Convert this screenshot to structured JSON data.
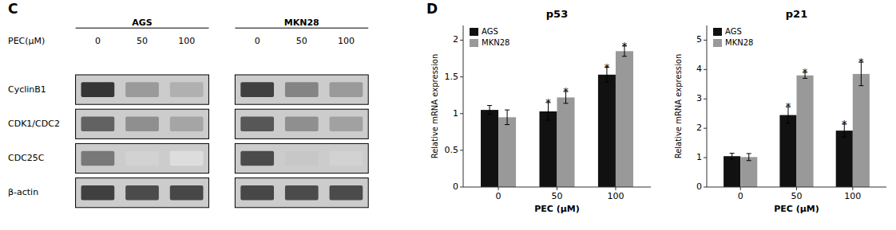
{
  "chart_data": [
    {
      "type": "blot",
      "annotations": [
        "C"
      ],
      "xlabel": "PEC(μM)",
      "categories": [
        "0",
        "50",
        "100"
      ],
      "rows": [
        "CyclinB1",
        "CDK1/CDC2",
        "CDC25C",
        "β-actin"
      ],
      "series": [
        {
          "name": "AGS",
          "values": [
            [
              0.9,
              0.45,
              0.35
            ],
            [
              0.7,
              0.5,
              0.4
            ],
            [
              0.6,
              0.2,
              0.15
            ],
            [
              0.85,
              0.8,
              0.82
            ]
          ]
        },
        {
          "name": "MKN28",
          "values": [
            [
              0.85,
              0.55,
              0.45
            ],
            [
              0.75,
              0.5,
              0.42
            ],
            [
              0.8,
              0.25,
              0.2
            ],
            [
              0.82,
              0.8,
              0.8
            ]
          ]
        }
      ]
    },
    {
      "type": "bar",
      "annotations": [
        "D"
      ],
      "title": "p53",
      "xlabel": "PEC (μM)",
      "ylabel": "Relative mRNA expression",
      "categories": [
        "0",
        "50",
        "100"
      ],
      "series": [
        {
          "name": "AGS",
          "color": "#111111",
          "values": [
            1.05,
            1.03,
            1.53
          ],
          "errors": [
            0.06,
            0.12,
            0.1
          ],
          "annotations": [
            null,
            "*",
            "*"
          ]
        },
        {
          "name": "MKN28",
          "color": "#999999",
          "values": [
            0.95,
            1.22,
            1.85
          ],
          "errors": [
            0.1,
            0.08,
            0.07
          ],
          "annotations": [
            null,
            "*",
            "*"
          ]
        }
      ],
      "ylim": [
        0,
        2.2
      ],
      "yticks": [
        0,
        0.5,
        1,
        1.5,
        2
      ],
      "grid": false,
      "legend": "upper left"
    },
    {
      "type": "bar",
      "title": "p21",
      "xlabel": "PEC (μM)",
      "ylabel": "Relative mRNA expression",
      "categories": [
        "0",
        "50",
        "100"
      ],
      "series": [
        {
          "name": "AGS",
          "color": "#111111",
          "values": [
            1.05,
            2.45,
            1.92
          ],
          "errors": [
            0.1,
            0.28,
            0.22
          ],
          "annotations": [
            null,
            "*",
            "*"
          ]
        },
        {
          "name": "MKN28",
          "color": "#999999",
          "values": [
            1.02,
            3.8,
            3.85
          ],
          "errors": [
            0.12,
            0.1,
            0.4
          ],
          "annotations": [
            null,
            "*",
            "*"
          ]
        }
      ],
      "ylim": [
        0,
        5.5
      ],
      "yticks": [
        0,
        1,
        2,
        3,
        4,
        5
      ],
      "grid": false,
      "legend": "upper left"
    }
  ]
}
